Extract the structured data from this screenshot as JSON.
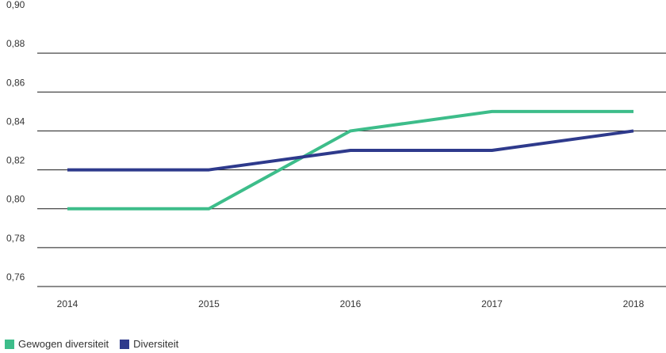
{
  "chart_data": {
    "type": "line",
    "title": "",
    "xlabel": "",
    "ylabel": "",
    "categories": [
      "2014",
      "2015",
      "2016",
      "2017",
      "2018"
    ],
    "ylim": [
      0.76,
      0.9
    ],
    "yticks": [
      "0,76",
      "0,78",
      "0,80",
      "0,82",
      "0,84",
      "0,86",
      "0,88",
      "0,90"
    ],
    "ytick_values": [
      0.76,
      0.78,
      0.8,
      0.82,
      0.84,
      0.86,
      0.88,
      0.9
    ],
    "grid": true,
    "legend_position": "bottom-left",
    "series": [
      {
        "name": "Gewogen diversiteit",
        "color": "#3dbd8a",
        "values": [
          0.8,
          0.8,
          0.84,
          0.85,
          0.85
        ]
      },
      {
        "name": "Diversiteit",
        "color": "#2e3a8c",
        "values": [
          0.82,
          0.82,
          0.83,
          0.83,
          0.84
        ]
      }
    ]
  }
}
